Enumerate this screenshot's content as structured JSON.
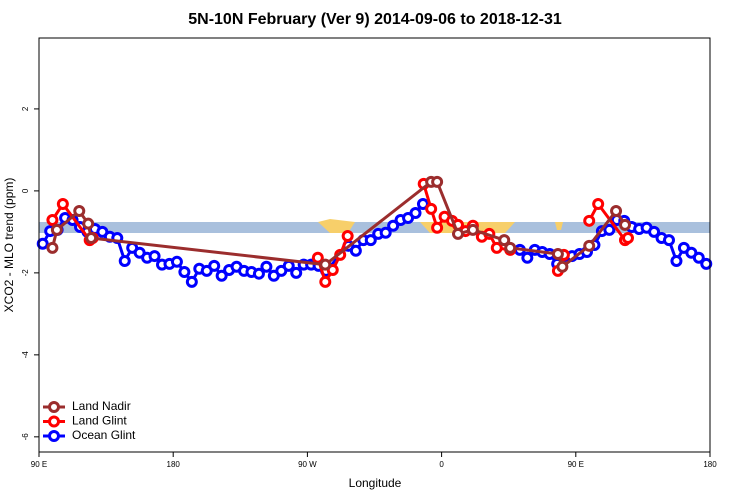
{
  "chart_data": {
    "type": "line",
    "title": "5N-10N February (Ver 9)   2014-09-06 to 2018-12-31",
    "x_label": "Longitude",
    "y_label": "XCO2 - MLO trend (ppm)",
    "xlim": [
      90,
      540
    ],
    "ylim": [
      -6.37,
      3.73
    ],
    "xticks": [
      {
        "value": 90,
        "label": "90 E"
      },
      180,
      {
        "value": 270,
        "label": "90 W"
      },
      {
        "value": 360,
        "label": "0"
      },
      {
        "value": 450,
        "label": "90 E"
      },
      {
        "value": 540,
        "label": "180"
      }
    ],
    "yticks": [
      -6,
      -4,
      -2,
      0,
      2
    ],
    "legend": "bottom-left",
    "series": [
      {
        "name": "Land Nadir",
        "color": "#9b2d2d",
        "x": [
          99,
          102,
          117,
          123,
          125,
          282,
          353,
          357,
          371,
          381,
          402,
          406,
          438,
          441,
          459,
          477,
          483
        ],
        "values": [
          -1.39,
          -0.95,
          -0.49,
          -0.8,
          -1.15,
          -1.8,
          0.22,
          0.22,
          -1.05,
          -0.95,
          -1.2,
          -1.39,
          -1.54,
          -1.85,
          -1.34,
          -0.49,
          -0.83
        ]
      },
      {
        "name": "Land Glint",
        "color": "#ff0000",
        "x": [
          99,
          106,
          124,
          126,
          200,
          277,
          282,
          287,
          292,
          297,
          320,
          348,
          353,
          357,
          362,
          367,
          371,
          376,
          381,
          387,
          392,
          397,
          406,
          420,
          438,
          442,
          450,
          459,
          465,
          483,
          485
        ],
        "values": [
          -0.71,
          -0.32,
          -1.2,
          -1.15,
          null,
          -1.63,
          -2.22,
          -1.93,
          -1.56,
          -1.1,
          null,
          0.17,
          -0.44,
          -0.9,
          -0.63,
          -0.73,
          -0.83,
          -0.98,
          -0.85,
          -1.12,
          -1.05,
          -1.39,
          -1.44,
          null,
          -1.95,
          -1.56,
          null,
          -0.73,
          -0.32,
          -1.2,
          -1.15
        ]
      },
      {
        "name": "Ocean Glint",
        "color": "#0000ff",
        "x": [
          92.5,
          97.5,
          102.5,
          107.5,
          112.5,
          117.5,
          122.5,
          127.5,
          132.5,
          137.5,
          142.5,
          147.5,
          152.5,
          157.5,
          162.5,
          167.5,
          172.5,
          177.5,
          182.5,
          187.5,
          192.5,
          197.5,
          202.5,
          207.5,
          212.5,
          217.5,
          222.5,
          227.5,
          232.5,
          237.5,
          242.5,
          247.5,
          252.5,
          257.5,
          262.5,
          267.5,
          272.5,
          277.5,
          282.5,
          297.5,
          302.5,
          307.5,
          312.5,
          317.5,
          322.5,
          327.5,
          332.5,
          337.5,
          342.5,
          347.5,
          380,
          412.5,
          417.5,
          422.5,
          427.5,
          432.5,
          437.5,
          442.5,
          447.5,
          452.5,
          457.5,
          462.5,
          467.5,
          472.5,
          477.5,
          482.5,
          487.5,
          492.5,
          497.5,
          502.5,
          507.5,
          512.5,
          517.5,
          522.5,
          527.5,
          532.5,
          537.5
        ],
        "values": [
          -1.29,
          -0.98,
          -0.95,
          -0.66,
          -0.71,
          -0.88,
          -1.0,
          -0.93,
          -1.0,
          -1.12,
          -1.15,
          -1.71,
          -1.39,
          -1.51,
          -1.63,
          -1.59,
          -1.8,
          -1.78,
          -1.73,
          -1.98,
          -2.22,
          -1.9,
          -1.95,
          -1.83,
          -2.07,
          -1.93,
          -1.85,
          -1.95,
          -1.98,
          -2.02,
          -1.85,
          -2.07,
          -1.95,
          -1.83,
          -2.0,
          -1.8,
          -1.8,
          -1.83,
          -1.95,
          -1.34,
          -1.46,
          -1.2,
          -1.2,
          -1.05,
          -1.02,
          -0.85,
          -0.71,
          -0.66,
          -0.54,
          -0.32,
          null,
          -1.44,
          -1.63,
          -1.44,
          -1.49,
          -1.54,
          -1.78,
          -1.59,
          -1.59,
          -1.54,
          -1.49,
          -1.32,
          -0.98,
          -0.95,
          -0.71,
          -0.73,
          -0.88,
          -0.93,
          -0.9,
          -1.0,
          -1.15,
          -1.2,
          -1.71,
          -1.39,
          -1.51,
          -1.63,
          -1.78
        ]
      }
    ]
  }
}
